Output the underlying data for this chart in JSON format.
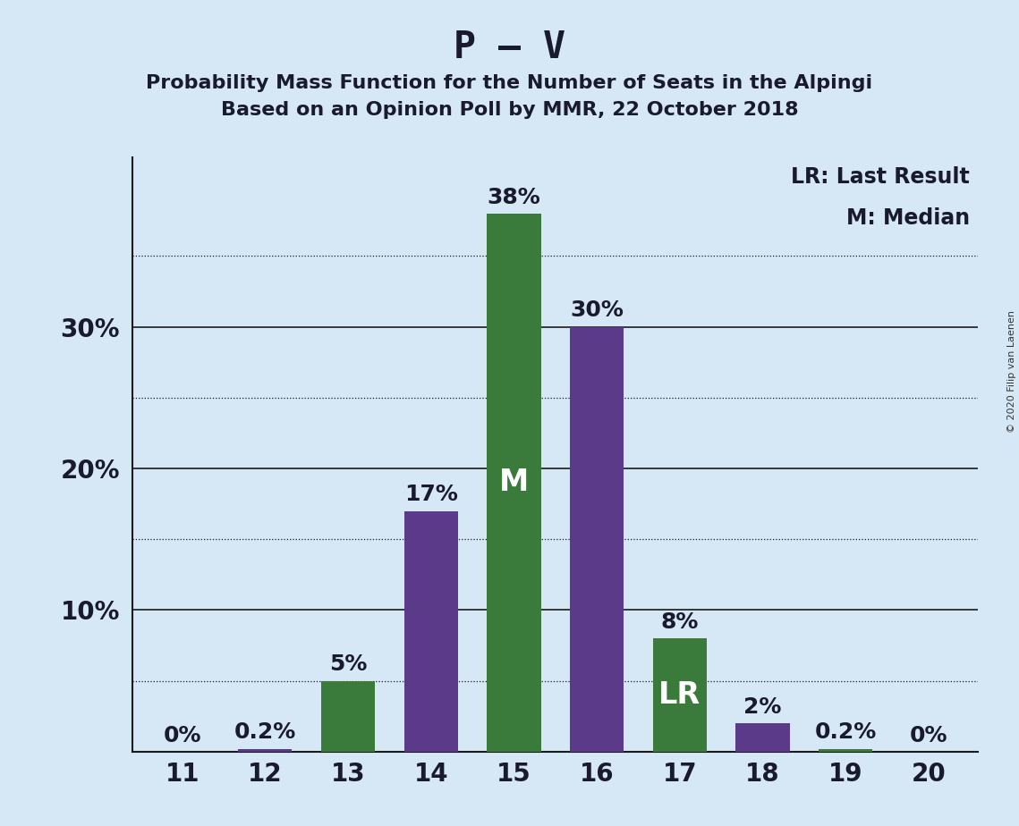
{
  "title": "P – V",
  "subtitle1": "Probability Mass Function for the Number of Seats in the Alpingi",
  "subtitle2": "Based on an Opinion Poll by MMR, 22 October 2018",
  "copyright": "© 2020 Filip van Laenen",
  "categories": [
    11,
    12,
    13,
    14,
    15,
    16,
    17,
    18,
    19,
    20
  ],
  "values": [
    0.0,
    0.2,
    5.0,
    17.0,
    38.0,
    30.0,
    8.0,
    2.0,
    0.2,
    0.0
  ],
  "colors": [
    "#3a7a3a",
    "#5b3a8a",
    "#3a7a3a",
    "#5b3a8a",
    "#3a7a3a",
    "#5b3a8a",
    "#3a7a3a",
    "#5b3a8a",
    "#3a7a3a",
    "#5b3a8a"
  ],
  "bar_labels": [
    "0%",
    "0.2%",
    "5%",
    "17%",
    "38%",
    "30%",
    "8%",
    "2%",
    "0.2%",
    "0%"
  ],
  "median_idx": 4,
  "lr_idx": 6,
  "legend_lr": "LR: Last Result",
  "legend_m": "M: Median",
  "ylim": [
    0,
    42
  ],
  "solid_gridlines": [
    10,
    20,
    30
  ],
  "dotted_gridlines": [
    5,
    15,
    25,
    35
  ],
  "ytick_positions": [
    10,
    20,
    30
  ],
  "ytick_labels": [
    "10%",
    "20%",
    "30%"
  ],
  "background_color": "#d6e8f5",
  "bar_green": "#3a7a3a",
  "bar_purple": "#5b3a8a",
  "label_color": "#1a1a2e",
  "inside_label_color": "#ffffff",
  "title_fontsize": 30,
  "subtitle_fontsize": 16,
  "tick_fontsize": 20,
  "bar_label_fontsize": 18,
  "inside_label_fontsize": 24,
  "legend_fontsize": 17
}
